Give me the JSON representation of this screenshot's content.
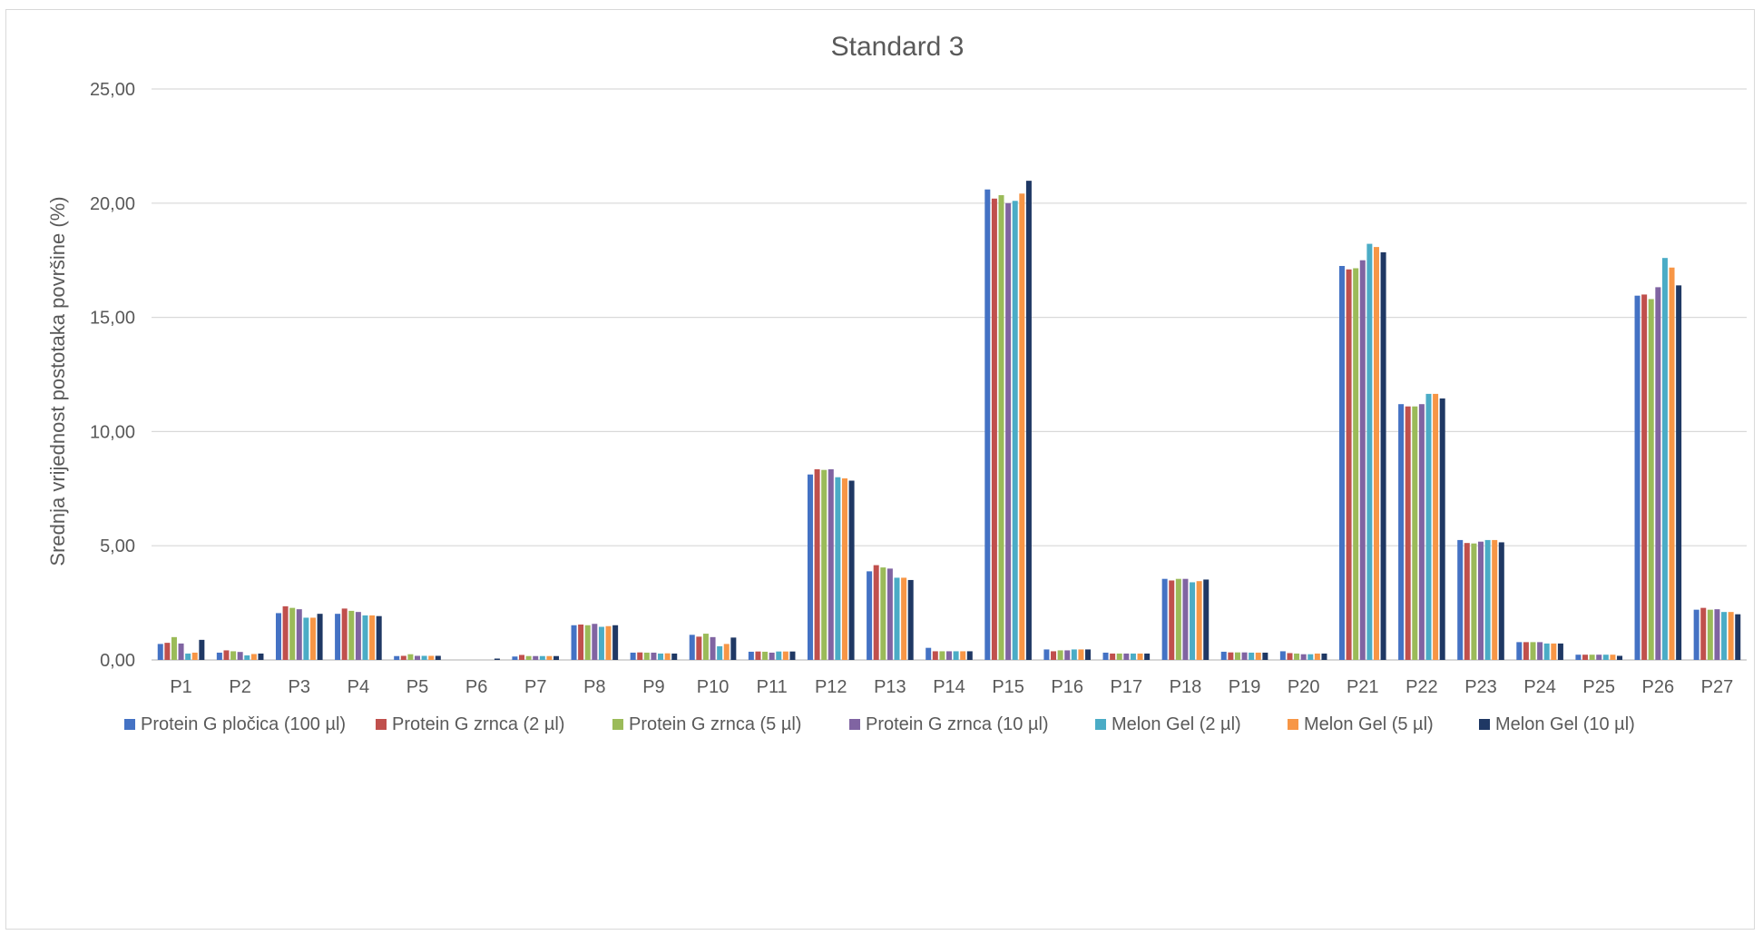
{
  "chart_data": {
    "type": "bar",
    "title": "Standard 3",
    "xlabel": "",
    "ylabel": "Srednja vrijednost postotaka površine (%)",
    "ylim": [
      0,
      25
    ],
    "yticks": [
      "0,00",
      "5,00",
      "10,00",
      "15,00",
      "20,00",
      "25,00"
    ],
    "grid": true,
    "legend_position": "bottom",
    "categories": [
      "P1",
      "P2",
      "P3",
      "P4",
      "P5",
      "P6",
      "P7",
      "P8",
      "P9",
      "P10",
      "P11",
      "P12",
      "P13",
      "P14",
      "P15",
      "P16",
      "P17",
      "P18",
      "P19",
      "P20",
      "P21",
      "P22",
      "P23",
      "P24",
      "P25",
      "P26",
      "P27"
    ],
    "series": [
      {
        "name": "Protein G pločica (100 µl)",
        "color": "#4472c4",
        "values": [
          0.7,
          0.32,
          2.05,
          2.02,
          0.17,
          0.0,
          0.15,
          1.52,
          0.32,
          1.1,
          0.36,
          8.12,
          3.88,
          0.53,
          20.6,
          0.46,
          0.32,
          3.55,
          0.36,
          0.38,
          17.25,
          11.2,
          5.25,
          0.78,
          0.23,
          15.95,
          2.2
        ]
      },
      {
        "name": "Protein G zrnca (2 µl)",
        "color": "#c0504d",
        "values": [
          0.75,
          0.42,
          2.35,
          2.25,
          0.18,
          0.0,
          0.22,
          1.55,
          0.33,
          1.02,
          0.37,
          8.35,
          4.15,
          0.38,
          20.2,
          0.38,
          0.28,
          3.48,
          0.33,
          0.3,
          17.1,
          11.1,
          5.12,
          0.78,
          0.23,
          16.0,
          2.28
        ]
      },
      {
        "name": "Protein G zrnca (5 µl)",
        "color": "#9bbb59",
        "values": [
          1.0,
          0.38,
          2.28,
          2.15,
          0.25,
          0.0,
          0.17,
          1.52,
          0.32,
          1.15,
          0.36,
          8.32,
          4.05,
          0.38,
          20.35,
          0.42,
          0.28,
          3.55,
          0.33,
          0.28,
          17.15,
          11.1,
          5.1,
          0.78,
          0.23,
          15.8,
          2.2
        ]
      },
      {
        "name": "Protein G zrnca (10 µl)",
        "color": "#8064a2",
        "values": [
          0.72,
          0.35,
          2.22,
          2.1,
          0.18,
          0.0,
          0.17,
          1.58,
          0.32,
          1.0,
          0.32,
          8.35,
          4.0,
          0.38,
          20.0,
          0.42,
          0.28,
          3.55,
          0.33,
          0.25,
          17.5,
          11.2,
          5.18,
          0.78,
          0.23,
          16.32,
          2.22
        ]
      },
      {
        "name": "Melon Gel (2 µl)",
        "color": "#4bacc6",
        "values": [
          0.28,
          0.2,
          1.85,
          1.95,
          0.18,
          0.0,
          0.17,
          1.45,
          0.28,
          0.6,
          0.37,
          8.0,
          3.6,
          0.38,
          20.1,
          0.46,
          0.28,
          3.4,
          0.32,
          0.25,
          18.22,
          11.65,
          5.25,
          0.72,
          0.23,
          17.6,
          2.1
        ]
      },
      {
        "name": "Melon Gel (5 µl)",
        "color": "#f79646",
        "values": [
          0.32,
          0.26,
          1.85,
          1.95,
          0.18,
          0.0,
          0.17,
          1.48,
          0.29,
          0.7,
          0.37,
          7.95,
          3.6,
          0.38,
          20.42,
          0.46,
          0.28,
          3.45,
          0.32,
          0.28,
          18.08,
          11.65,
          5.25,
          0.72,
          0.23,
          17.18,
          2.1
        ]
      },
      {
        "name": "Melon Gel (10 µl)",
        "color": "#1f3864",
        "values": [
          0.88,
          0.28,
          2.02,
          1.92,
          0.18,
          0.06,
          0.17,
          1.52,
          0.28,
          0.98,
          0.37,
          7.85,
          3.5,
          0.38,
          20.98,
          0.46,
          0.28,
          3.52,
          0.32,
          0.28,
          17.85,
          11.45,
          5.15,
          0.72,
          0.18,
          16.4,
          2.0
        ]
      }
    ]
  }
}
